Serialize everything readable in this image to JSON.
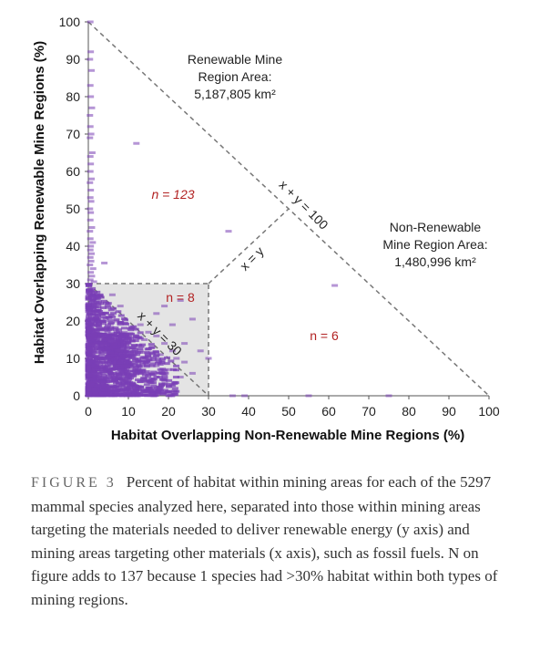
{
  "figure": {
    "caption_head": "FIGURE",
    "caption_number": "3",
    "caption_text": "Percent of habitat within mining areas for each of the 5297 mammal species analyzed here, separated into those within mining areas targeting the materials needed to deliver renewable energy (y axis) and mining areas targeting other materials (x axis), such as fossil fuels. N on figure adds to 137 because 1 species had >30% habitat within both types of mining regions."
  },
  "chart_data": {
    "type": "scatter",
    "xlabel": "Habitat Overlapping Non-Renewable Mine Regions (%)",
    "ylabel": "Habitat Overlapping Renewable Mine Regions (%)",
    "xlim": [
      0,
      100
    ],
    "ylim": [
      0,
      100
    ],
    "xticks": [
      "0",
      "10",
      "20",
      "30",
      "40",
      "50",
      "60",
      "70",
      "80",
      "90",
      "100"
    ],
    "yticks": [
      "0",
      "10",
      "20",
      "30",
      "40",
      "50",
      "60",
      "70",
      "80",
      "90",
      "100"
    ],
    "marker_color": "#7a3fb5",
    "shade_color": "#e4e4e4",
    "line_color": "#777777",
    "reference_lines": [
      {
        "label": "x + y = 100",
        "from": [
          0,
          100
        ],
        "to": [
          100,
          0
        ]
      },
      {
        "label": "x + y = 30",
        "from": [
          0,
          30
        ],
        "to": [
          30,
          0
        ]
      },
      {
        "label": "x = y",
        "from": [
          30,
          30
        ],
        "to": [
          50,
          50
        ]
      }
    ],
    "region_box": {
      "x": [
        0,
        30
      ],
      "y": [
        0,
        30
      ]
    },
    "annotations": {
      "renewable_area": [
        "Renewable Mine",
        "Region Area:",
        "5,187,805 km²"
      ],
      "nonrenewable_area": [
        "Non-Renewable",
        "Mine Region Area:",
        "1,480,996 km²"
      ],
      "n_renewable": "n = 123",
      "n_both": "n = 8",
      "n_nonrenewable": "n = 6"
    },
    "points": [
      {
        "x": 0.5,
        "y": 100
      },
      {
        "x": 0.6,
        "y": 92
      },
      {
        "x": 0.4,
        "y": 90
      },
      {
        "x": 0.8,
        "y": 87
      },
      {
        "x": 0.5,
        "y": 83
      },
      {
        "x": 0.6,
        "y": 80
      },
      {
        "x": 0.9,
        "y": 77
      },
      {
        "x": 0.4,
        "y": 75
      },
      {
        "x": 0.5,
        "y": 72
      },
      {
        "x": 0.7,
        "y": 70
      },
      {
        "x": 0.4,
        "y": 69
      },
      {
        "x": 1.0,
        "y": 65
      },
      {
        "x": 0.5,
        "y": 64
      },
      {
        "x": 0.6,
        "y": 62
      },
      {
        "x": 0.5,
        "y": 60
      },
      {
        "x": 0.8,
        "y": 58
      },
      {
        "x": 0.4,
        "y": 57
      },
      {
        "x": 0.6,
        "y": 55
      },
      {
        "x": 0.5,
        "y": 53
      },
      {
        "x": 0.7,
        "y": 52
      },
      {
        "x": 0.4,
        "y": 50
      },
      {
        "x": 0.6,
        "y": 49
      },
      {
        "x": 0.5,
        "y": 47
      },
      {
        "x": 0.9,
        "y": 45
      },
      {
        "x": 0.4,
        "y": 44
      },
      {
        "x": 0.5,
        "y": 42
      },
      {
        "x": 1.1,
        "y": 41
      },
      {
        "x": 0.6,
        "y": 40
      },
      {
        "x": 0.5,
        "y": 39
      },
      {
        "x": 0.8,
        "y": 38
      },
      {
        "x": 0.5,
        "y": 37
      },
      {
        "x": 0.7,
        "y": 36
      },
      {
        "x": 0.4,
        "y": 35
      },
      {
        "x": 1.2,
        "y": 34
      },
      {
        "x": 0.6,
        "y": 33
      },
      {
        "x": 0.9,
        "y": 32
      },
      {
        "x": 0.5,
        "y": 31
      },
      {
        "x": 1.4,
        "y": 30.5
      },
      {
        "x": 12,
        "y": 67.5
      },
      {
        "x": 35,
        "y": 44
      },
      {
        "x": 4,
        "y": 35.5
      },
      {
        "x": 61.5,
        "y": 29.5
      },
      {
        "x": 36,
        "y": 0
      },
      {
        "x": 39,
        "y": 0
      },
      {
        "x": 55,
        "y": 0
      },
      {
        "x": 75,
        "y": 0
      },
      {
        "x": 26,
        "y": 20.5
      },
      {
        "x": 23,
        "y": 25.5
      },
      {
        "x": 19,
        "y": 24
      },
      {
        "x": 30,
        "y": 10
      },
      {
        "x": 24,
        "y": 14
      },
      {
        "x": 21,
        "y": 19
      },
      {
        "x": 28,
        "y": 12
      },
      {
        "x": 17,
        "y": 22
      },
      {
        "x": 13,
        "y": 19
      },
      {
        "x": 15,
        "y": 17
      },
      {
        "x": 17,
        "y": 16
      },
      {
        "x": 19,
        "y": 14
      },
      {
        "x": 21,
        "y": 12
      },
      {
        "x": 22,
        "y": 10
      },
      {
        "x": 24,
        "y": 9
      },
      {
        "x": 20,
        "y": 7
      },
      {
        "x": 18,
        "y": 11
      },
      {
        "x": 16,
        "y": 13
      },
      {
        "x": 14,
        "y": 15
      },
      {
        "x": 12,
        "y": 16
      },
      {
        "x": 26,
        "y": 6
      },
      {
        "x": 23,
        "y": 5
      },
      {
        "x": 11,
        "y": 18
      },
      {
        "x": 13,
        "y": 12
      },
      {
        "x": 10,
        "y": 14
      },
      {
        "x": 9,
        "y": 17
      },
      {
        "x": 15,
        "y": 10
      },
      {
        "x": 17,
        "y": 8
      },
      {
        "x": 8,
        "y": 12
      },
      {
        "x": 11,
        "y": 9
      },
      {
        "x": 12,
        "y": 6
      },
      {
        "x": 14,
        "y": 4
      },
      {
        "x": 7,
        "y": 20
      },
      {
        "x": 8,
        "y": 24
      },
      {
        "x": 6,
        "y": 27
      },
      {
        "x": 9,
        "y": 4
      },
      {
        "x": 7,
        "y": 8
      },
      {
        "x": 10,
        "y": 2
      },
      {
        "x": 16,
        "y": 2
      },
      {
        "x": 19,
        "y": 3
      }
    ],
    "dense_cluster": {
      "seed": 7,
      "count": 1400
    }
  }
}
